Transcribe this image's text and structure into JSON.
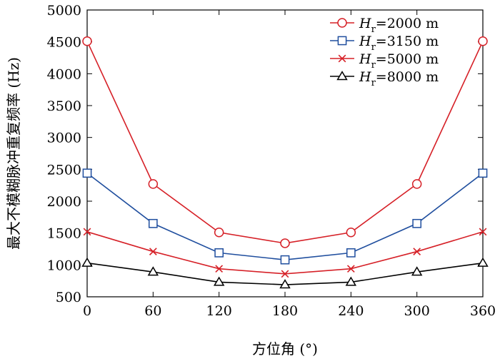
{
  "chart_data": {
    "type": "line",
    "title": "",
    "xlabel": "方位角 (°)",
    "ylabel": "最大不模糊脉冲重复频率 (Hz)",
    "x": [
      0,
      60,
      120,
      180,
      240,
      300,
      360
    ],
    "xlim": [
      0,
      360
    ],
    "ylim": [
      500,
      5000
    ],
    "xticks": [
      "0",
      "60",
      "120",
      "180",
      "240",
      "300",
      "360"
    ],
    "yticks": [
      "500",
      "1000",
      "1500",
      "2000",
      "2500",
      "3000",
      "3500",
      "4000",
      "4500",
      "5000"
    ],
    "grid": false,
    "legend_position": "top-right",
    "series": [
      {
        "name": "=2000 m",
        "name_prefix": "H",
        "name_sub": "r",
        "color": "#d62027",
        "marker": "circle",
        "values": [
          4510,
          2270,
          1510,
          1340,
          1510,
          2270,
          4510
        ]
      },
      {
        "name": "=3150 m",
        "name_prefix": "H",
        "name_sub": "r",
        "color": "#1f4e9e",
        "marker": "square",
        "values": [
          2440,
          1650,
          1190,
          1080,
          1190,
          1650,
          2440
        ]
      },
      {
        "name": "=5000 m",
        "name_prefix": "H",
        "name_sub": "r",
        "color": "#d62027",
        "marker": "x",
        "values": [
          1520,
          1210,
          940,
          860,
          940,
          1210,
          1520
        ]
      },
      {
        "name": "=8000 m",
        "name_prefix": "H",
        "name_sub": "r",
        "color": "#000000",
        "marker": "triangle",
        "values": [
          1030,
          890,
          730,
          690,
          730,
          890,
          1030
        ]
      }
    ]
  }
}
